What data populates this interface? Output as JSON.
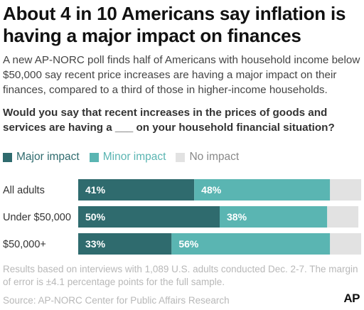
{
  "header": {
    "title": "About 4 in 10 Americans say inflation is having a major impact on finances",
    "subtitle": "A new AP-NORC poll finds half of Americans with household income below $50,000 say recent price increases are having a major impact on their finances, compared to a third of those in higher-income households.",
    "question": "Would you say that recent increases in the prices of goods and services are having a ___ on your household financial situation?"
  },
  "legend": {
    "major": "Major impact",
    "minor": "Minor impact",
    "none": "No impact"
  },
  "colors": {
    "major": "#2f6b6e",
    "minor": "#5ab5b2",
    "none": "#e2e2e2",
    "legend_major_text": "#2f6b6e",
    "legend_minor_text": "#5ab5b2",
    "legend_none_text": "#888888"
  },
  "chart_data": {
    "type": "bar",
    "orientation": "horizontal",
    "stacked": true,
    "categories": [
      "All adults",
      "Under $50,000",
      "$50,000+"
    ],
    "series": [
      {
        "name": "Major impact",
        "values": [
          41,
          50,
          33
        ],
        "labels": [
          "41%",
          "50%",
          "33%"
        ]
      },
      {
        "name": "Minor impact",
        "values": [
          48,
          38,
          56
        ],
        "labels": [
          "48%",
          "38%",
          "56%"
        ]
      },
      {
        "name": "No impact",
        "values": [
          11,
          11,
          11
        ],
        "labels": [
          "",
          "",
          ""
        ]
      }
    ],
    "xlim": [
      0,
      100
    ],
    "grid": false,
    "legend_position": "top-left"
  },
  "footer": {
    "note": "Results based on interviews with 1,089 U.S. adults conducted Dec. 2-7. The margin of error is ±4.1 percentage points for the full sample.",
    "source": "Source: AP-NORC Center for Public Affairs Research",
    "logo": "AP"
  }
}
